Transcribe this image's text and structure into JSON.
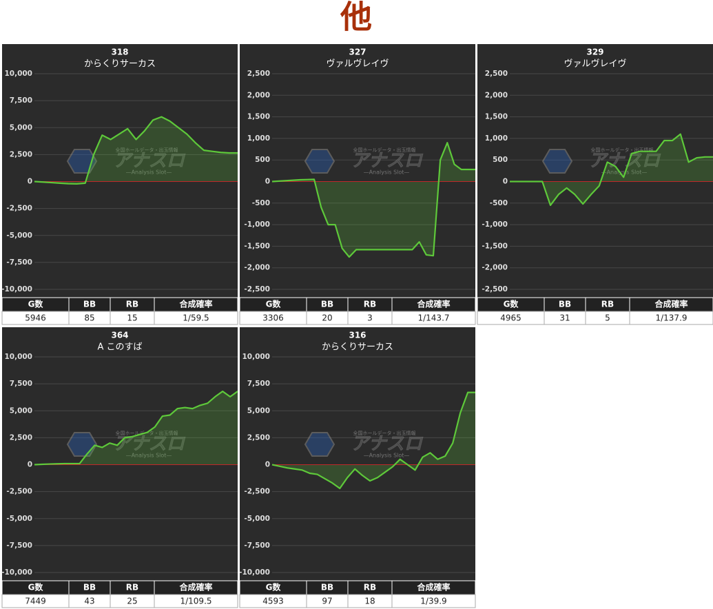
{
  "title": "他",
  "watermark": {
    "tagline": "全国ホールデータ・出玉情報",
    "logo": "アナスロ",
    "sub": "—Analysis Slot—"
  },
  "chart_data": [
    {
      "type": "line",
      "title": "318",
      "subtitle": "からくりサーカス",
      "color": "#5ec93a",
      "grid": true,
      "values": [
        0,
        -50,
        -100,
        -150,
        -200,
        -220,
        -150,
        2500,
        4300,
        3900,
        4400,
        4900,
        3900,
        4700,
        5700,
        6000,
        5600,
        5000,
        4400,
        3600,
        2900,
        2800,
        2700,
        2650,
        2650
      ],
      "ylim": [
        -10000,
        10000
      ],
      "yticks": [
        {
          "value": 10000,
          "label": "10,000"
        },
        {
          "value": 7500,
          "label": "7,500"
        },
        {
          "value": 5000,
          "label": "5,000"
        },
        {
          "value": 2500,
          "label": "2,500"
        },
        0,
        {
          "value": -2500,
          "label": "-2,500"
        },
        {
          "value": -5000,
          "label": "-5,000"
        },
        {
          "value": -7500,
          "label": "-7,500"
        },
        {
          "value": -10000,
          "label": "-10,000"
        }
      ],
      "table": {
        "columns": [
          "G数",
          "BB",
          "RB",
          "合成確率"
        ],
        "row": [
          "5946",
          "85",
          "15",
          "1/59.5"
        ]
      }
    },
    {
      "type": "line",
      "title": "327",
      "subtitle": "ヴァルヴレイヴ",
      "color": "#5ec93a",
      "grid": true,
      "values": [
        0,
        10,
        20,
        30,
        40,
        45,
        50,
        -600,
        -1000,
        -1000,
        -1550,
        -1750,
        -1580,
        -1580,
        -1580,
        -1580,
        -1580,
        -1580,
        -1580,
        -1580,
        -1580,
        -1400,
        -1700,
        -1720,
        500,
        900,
        400,
        280,
        280,
        280
      ],
      "ylim": [
        -2500,
        2500
      ],
      "yticks": [
        {
          "value": 2500,
          "label": "2,500"
        },
        {
          "value": 2000,
          "label": "2,000"
        },
        {
          "value": 1500,
          "label": "1,500"
        },
        {
          "value": 1000,
          "label": "1,000"
        },
        500,
        0,
        -500,
        {
          "value": -1000,
          "label": "-1,000"
        },
        {
          "value": -1500,
          "label": "-1,500"
        },
        {
          "value": -2000,
          "label": "-2,000"
        },
        {
          "value": -2500,
          "label": "-2,500"
        }
      ],
      "table": {
        "columns": [
          "G数",
          "BB",
          "RB",
          "合成確率"
        ],
        "row": [
          "3306",
          "20",
          "3",
          "1/143.7"
        ]
      }
    },
    {
      "type": "line",
      "title": "329",
      "subtitle": "ヴァルヴレイヴ",
      "color": "#5ec93a",
      "grid": true,
      "values": [
        0,
        0,
        0,
        0,
        0,
        -550,
        -300,
        -150,
        -300,
        -520,
        -300,
        -100,
        450,
        350,
        100,
        650,
        700,
        700,
        700,
        950,
        950,
        1100,
        450,
        550,
        570,
        570
      ],
      "ylim": [
        -2500,
        2500
      ],
      "yticks": [
        {
          "value": 2500,
          "label": "2,500"
        },
        {
          "value": 2000,
          "label": "2,000"
        },
        {
          "value": 1500,
          "label": "1,500"
        },
        {
          "value": 1000,
          "label": "1,000"
        },
        500,
        0,
        -500,
        {
          "value": -1000,
          "label": "-1,000"
        },
        {
          "value": -1500,
          "label": "-1,500"
        },
        {
          "value": -2000,
          "label": "-2,000"
        },
        {
          "value": -2500,
          "label": "-2,500"
        }
      ],
      "table": {
        "columns": [
          "G数",
          "BB",
          "RB",
          "合成確率"
        ],
        "row": [
          "4965",
          "31",
          "5",
          "1/137.9"
        ]
      }
    },
    {
      "type": "line",
      "title": "364",
      "subtitle": "A このすば",
      "color": "#5ec93a",
      "grid": true,
      "values": [
        0,
        30,
        60,
        80,
        100,
        100,
        100,
        1000,
        1800,
        1600,
        2000,
        1800,
        2500,
        2600,
        2800,
        3000,
        3500,
        4500,
        4600,
        5200,
        5300,
        5200,
        5500,
        5700,
        6300,
        6800,
        6300,
        6800
      ],
      "ylim": [
        -10000,
        10000
      ],
      "yticks": [
        {
          "value": 10000,
          "label": "10,000"
        },
        {
          "value": 7500,
          "label": "7,500"
        },
        {
          "value": 5000,
          "label": "5,000"
        },
        {
          "value": 2500,
          "label": "2,500"
        },
        0,
        {
          "value": -2500,
          "label": "-2,500"
        },
        {
          "value": -5000,
          "label": "-5,000"
        },
        {
          "value": -7500,
          "label": "-7,500"
        },
        {
          "value": -10000,
          "label": "-10,000"
        }
      ],
      "table": {
        "columns": [
          "G数",
          "BB",
          "RB",
          "合成確率"
        ],
        "row": [
          "7449",
          "43",
          "25",
          "1/109.5"
        ]
      }
    },
    {
      "type": "line",
      "title": "316",
      "subtitle": "からくりサーカス",
      "color": "#5ec93a",
      "grid": true,
      "values": [
        0,
        -150,
        -300,
        -400,
        -500,
        -800,
        -900,
        -1300,
        -1700,
        -2200,
        -1200,
        -400,
        -1000,
        -1500,
        -1200,
        -700,
        -200,
        500,
        0,
        -500,
        700,
        1100,
        500,
        800,
        2000,
        4800,
        6700,
        6700
      ],
      "ylim": [
        -10000,
        10000
      ],
      "yticks": [
        {
          "value": 10000,
          "label": "10,000"
        },
        {
          "value": 7500,
          "label": "7,500"
        },
        {
          "value": 5000,
          "label": "5,000"
        },
        {
          "value": 2500,
          "label": "2,500"
        },
        0,
        {
          "value": -2500,
          "label": "-2,500"
        },
        {
          "value": -5000,
          "label": "-5,000"
        },
        {
          "value": -7500,
          "label": "-7,500"
        },
        {
          "value": -10000,
          "label": "-10,000"
        }
      ],
      "table": {
        "columns": [
          "G数",
          "BB",
          "RB",
          "合成確率"
        ],
        "row": [
          "4593",
          "97",
          "18",
          "1/39.9"
        ]
      }
    }
  ]
}
